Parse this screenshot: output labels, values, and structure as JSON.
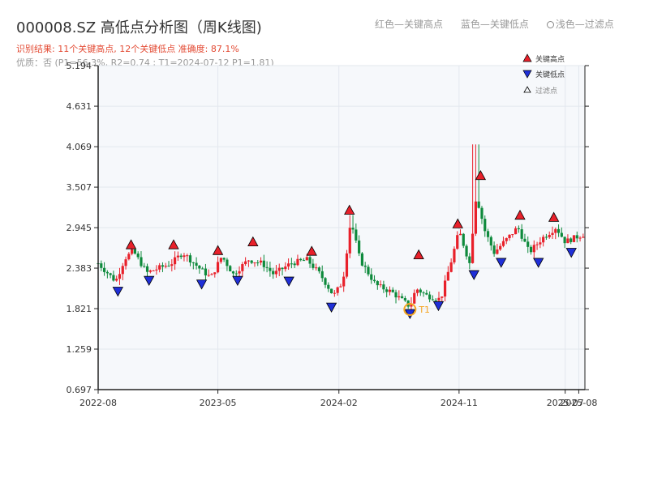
{
  "title": "000008.SZ 高低点分析图（周K线图)",
  "top_legend": {
    "red": "红色—关键高点",
    "blue": "蓝色—关键低点",
    "gray": "浅色—过滤点"
  },
  "result_text": "识别结果: 11个关键高点, 12个关键低点   准确度: 87.1%",
  "quality_text": "优质：否  (P1=56.3%, R2=0.74 ; T1=2024-07-12 P1=1.81)",
  "legend": {
    "high": "关键高点",
    "low": "关键低点",
    "filtered": "过滤点"
  },
  "colors": {
    "up": "#e8202a",
    "down": "#0e8a3c",
    "high_marker": "#e8202a",
    "low_marker": "#1f2fd8",
    "t1": "#f5a623",
    "plot_bg": "#f6f8fb",
    "grid": "#e3e7ee",
    "axis": "#222222"
  },
  "chart_data": {
    "type": "candlestick",
    "title": "000008.SZ 高低点分析图（周K线图)",
    "y_ticks": [
      "5.194",
      "4.631",
      "4.069",
      "3.507",
      "2.945",
      "2.383",
      "1.821",
      "1.259",
      "0.697"
    ],
    "ylim": [
      0.697,
      5.194
    ],
    "x_ticks": [
      {
        "label": "2022-08",
        "date": "2022-08-01"
      },
      {
        "label": "2023-05",
        "date": "2023-05-01"
      },
      {
        "label": "2024-02",
        "date": "2024-02-01"
      },
      {
        "label": "2024-11",
        "date": "2024-11-01"
      },
      {
        "label": "2025-07",
        "date": "2025-07-01"
      },
      {
        "label": "2025-08",
        "date": "2025-08-01"
      }
    ],
    "xlim": [
      "2022-08-01",
      "2025-08-15"
    ],
    "t1_label": "T1",
    "t1": {
      "date": "2024-07-12",
      "value": 1.81
    },
    "ohlc_anchors": [
      [
        "2022-08-01",
        2.45
      ],
      [
        "2022-09-10",
        2.2
      ],
      [
        "2022-10-01",
        2.52
      ],
      [
        "2022-10-20",
        2.62
      ],
      [
        "2022-11-20",
        2.32
      ],
      [
        "2023-01-15",
        2.45
      ],
      [
        "2023-02-10",
        2.6
      ],
      [
        "2023-03-20",
        2.38
      ],
      [
        "2023-04-15",
        2.25
      ],
      [
        "2023-05-10",
        2.55
      ],
      [
        "2023-06-05",
        2.3
      ],
      [
        "2023-07-10",
        2.5
      ],
      [
        "2023-08-10",
        2.45
      ],
      [
        "2023-09-05",
        2.3
      ],
      [
        "2023-10-15",
        2.45
      ],
      [
        "2023-11-20",
        2.5
      ],
      [
        "2023-12-20",
        2.3
      ],
      [
        "2024-01-20",
        2.0
      ],
      [
        "2024-02-10",
        2.2
      ],
      [
        "2024-02-28",
        3.05
      ],
      [
        "2024-03-20",
        2.5
      ],
      [
        "2024-04-25",
        2.15
      ],
      [
        "2024-06-01",
        2.05
      ],
      [
        "2024-07-12",
        1.85
      ],
      [
        "2024-07-26",
        2.1
      ],
      [
        "2024-08-20",
        2.0
      ],
      [
        "2024-09-20",
        1.95
      ],
      [
        "2024-10-15",
        2.5
      ],
      [
        "2024-11-01",
        2.9
      ],
      [
        "2024-11-25",
        2.45
      ],
      [
        "2024-12-10",
        3.4
      ],
      [
        "2024-12-30",
        2.9
      ],
      [
        "2025-01-20",
        2.6
      ],
      [
        "2025-02-20",
        2.8
      ],
      [
        "2025-03-15",
        2.95
      ],
      [
        "2025-04-10",
        2.6
      ],
      [
        "2025-05-10",
        2.8
      ],
      [
        "2025-06-10",
        2.95
      ],
      [
        "2025-07-01",
        2.75
      ],
      [
        "2025-08-10",
        2.85
      ]
    ],
    "key_highs": [
      [
        "2022-10-15",
        2.64
      ],
      [
        "2023-01-20",
        2.64
      ],
      [
        "2023-05-01",
        2.56
      ],
      [
        "2023-07-20",
        2.68
      ],
      [
        "2023-12-01",
        2.55
      ],
      [
        "2024-02-25",
        3.12
      ],
      [
        "2024-08-01",
        2.5
      ],
      [
        "2024-10-29",
        2.93
      ],
      [
        "2024-12-20",
        3.6
      ],
      [
        "2025-03-20",
        3.05
      ],
      [
        "2025-06-05",
        3.02
      ]
    ],
    "key_lows": [
      [
        "2022-09-15",
        2.13
      ],
      [
        "2022-11-25",
        2.28
      ],
      [
        "2023-03-25",
        2.23
      ],
      [
        "2023-06-15",
        2.28
      ],
      [
        "2023-10-10",
        2.27
      ],
      [
        "2024-01-15",
        1.91
      ],
      [
        "2024-07-12",
        1.82
      ],
      [
        "2024-09-15",
        1.93
      ],
      [
        "2024-12-05",
        2.36
      ],
      [
        "2025-02-05",
        2.53
      ],
      [
        "2025-05-01",
        2.53
      ],
      [
        "2025-07-15",
        2.67
      ]
    ]
  }
}
